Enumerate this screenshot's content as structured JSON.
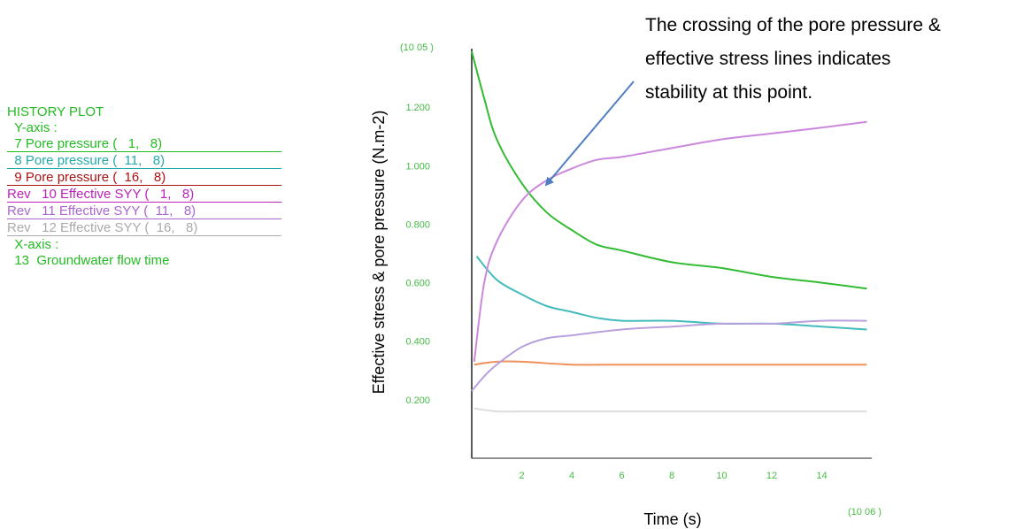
{
  "legend": {
    "title": "HISTORY PLOT",
    "yaxis_label": "  Y-axis :",
    "xaxis_label": "  X-axis :",
    "xaxis_item": "  13  Groundwater flow time",
    "items": [
      {
        "text": "  7 Pore pressure (   1,   8)",
        "color": "#22bb22"
      },
      {
        "text": "  8 Pore pressure (  11,   8)",
        "color": "#22aaaa"
      },
      {
        "text": "  9 Pore pressure (  16,   8)",
        "color": "#aa1111"
      },
      {
        "text": "Rev   10 Effective SYY (   1,   8)",
        "color": "#bb22bb"
      },
      {
        "text": "Rev   11 Effective SYY (  11,   8)",
        "color": "#aa66cc"
      },
      {
        "text": "Rev   12 Effective SYY (  16,   8)",
        "color": "#aaaaaa"
      }
    ]
  },
  "annotation": {
    "lines": [
      "The crossing of the pore pressure &",
      "effective stress lines indicates",
      "stability at this point."
    ],
    "arrow_color": "#4f7fc0"
  },
  "chart_data": {
    "type": "line",
    "xlabel": "Time (s)",
    "ylabel": "Effective stress & pore pressure (N.m-2)",
    "x_multiplier": "(10 06 )",
    "y_multiplier": "(10 05 )",
    "xlim": [
      0,
      16
    ],
    "ylim": [
      0,
      1.4
    ],
    "xticks": [
      2,
      4,
      6,
      8,
      10,
      12,
      14
    ],
    "yticks": [
      0.2,
      0.4,
      0.6,
      0.8,
      1.0,
      1.2
    ],
    "ytick_labels": [
      "0.200",
      "0.400",
      "0.600",
      "0.800",
      "1.000",
      "1.200"
    ],
    "series": [
      {
        "color": "#33bb33",
        "x": [
          0,
          0.5,
          1,
          2,
          3,
          4,
          5,
          6,
          8,
          10,
          12,
          14,
          15.8
        ],
        "y": [
          1.39,
          1.23,
          1.09,
          0.94,
          0.84,
          0.78,
          0.73,
          0.71,
          0.67,
          0.65,
          0.62,
          0.6,
          0.58
        ]
      },
      {
        "color": "#44bbbb",
        "x": [
          0.2,
          1,
          2,
          3,
          4,
          5,
          6,
          8,
          10,
          12,
          14,
          15.8
        ],
        "y": [
          0.69,
          0.61,
          0.56,
          0.52,
          0.5,
          0.48,
          0.47,
          0.47,
          0.46,
          0.46,
          0.45,
          0.44
        ]
      },
      {
        "color": "#f0905a",
        "x": [
          0.1,
          1,
          2,
          4,
          6,
          8,
          10,
          12,
          14,
          15.8
        ],
        "y": [
          0.32,
          0.33,
          0.33,
          0.32,
          0.32,
          0.32,
          0.32,
          0.32,
          0.32,
          0.32
        ]
      },
      {
        "color": "#cc88dd",
        "x": [
          0.1,
          0.5,
          1,
          2,
          3,
          4,
          5,
          6,
          8,
          10,
          12,
          14,
          15.8
        ],
        "y": [
          0.33,
          0.6,
          0.74,
          0.88,
          0.95,
          0.99,
          1.02,
          1.03,
          1.06,
          1.09,
          1.11,
          1.13,
          1.15
        ]
      },
      {
        "color": "#b8a0dd",
        "x": [
          0,
          0.5,
          1,
          2,
          3,
          4,
          6,
          8,
          10,
          12,
          14,
          15.8
        ],
        "y": [
          0.23,
          0.28,
          0.32,
          0.38,
          0.41,
          0.42,
          0.44,
          0.45,
          0.46,
          0.46,
          0.47,
          0.47
        ]
      },
      {
        "color": "#dddddd",
        "x": [
          0.1,
          1,
          2,
          4,
          6,
          8,
          10,
          12,
          14,
          15.8
        ],
        "y": [
          0.17,
          0.16,
          0.16,
          0.16,
          0.16,
          0.16,
          0.16,
          0.16,
          0.16,
          0.16
        ]
      }
    ]
  }
}
